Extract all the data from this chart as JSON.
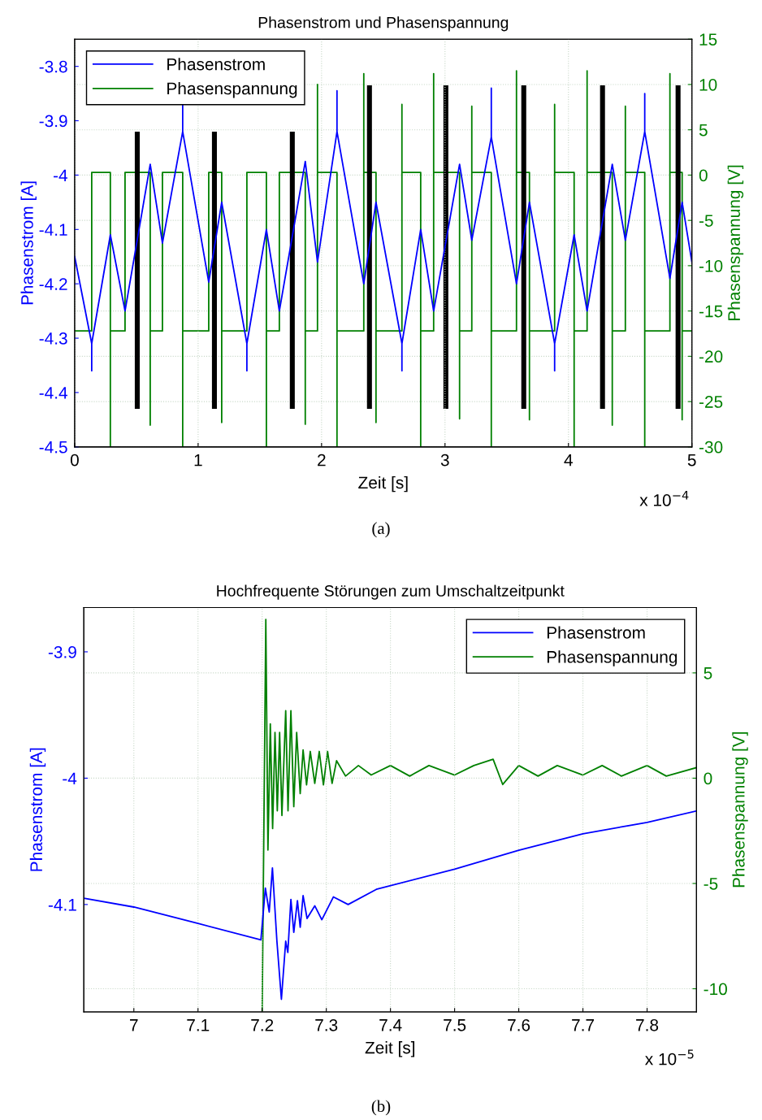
{
  "chart_data": [
    {
      "type": "line",
      "title": "Phasenstrom und Phasenspannung",
      "xlabel": "Zeit [s]",
      "ylabel": "Phasenstrom [A]",
      "y2label": "Phasenspannung [V]",
      "xlim": [
        0,
        5
      ],
      "xticks": [
        0,
        1,
        2,
        3,
        4,
        5
      ],
      "ylim": [
        -4.5,
        -3.75
      ],
      "yticks": [
        -4.5,
        -4.4,
        -4.3,
        -4.2,
        -4.1,
        -4,
        -3.9,
        -3.8
      ],
      "y2lim": [
        -30,
        15
      ],
      "y2ticks": [
        -30,
        -25,
        -20,
        -15,
        -10,
        -5,
        0,
        5,
        10,
        15
      ],
      "grid": true,
      "legend": "top left",
      "annotations": [
        "x 10$^{−4}$",
        "(a)"
      ],
      "series": [
        {
          "name": "Phasenstrom",
          "color": "#0000ff",
          "axis": "y",
          "x": [
            0,
            0.138,
            0.138,
            0.138,
            0.289,
            0.408,
            0.612,
            0.711,
            0.875,
            0.875,
            0.875,
            1.086,
            1.191,
            1.395,
            1.395,
            1.395,
            1.553,
            1.658,
            1.868,
            1.967,
            2.125,
            2.125,
            2.125,
            2.342,
            2.441,
            2.651,
            2.651,
            2.651,
            2.803,
            2.908,
            3.118,
            3.217,
            3.375,
            3.375,
            3.375,
            3.579,
            3.684,
            3.888,
            3.888,
            3.888,
            4.046,
            4.151,
            4.355,
            4.461,
            4.618,
            4.618,
            4.618,
            4.822,
            4.921,
            5
          ],
          "values": [
            -4.15,
            -4.31,
            -4.36,
            -4.31,
            -4.11,
            -4.25,
            -3.98,
            -4.125,
            -3.92,
            -3.87,
            -3.92,
            -4.197,
            -4.05,
            -4.31,
            -4.36,
            -4.31,
            -4.1,
            -4.25,
            -3.975,
            -4.16,
            -3.92,
            -3.845,
            -3.92,
            -4.2,
            -4.05,
            -4.31,
            -4.36,
            -4.31,
            -4.1,
            -4.25,
            -3.98,
            -4.12,
            -3.93,
            -3.84,
            -3.93,
            -4.2,
            -4.05,
            -4.31,
            -4.36,
            -4.31,
            -4.11,
            -4.25,
            -3.98,
            -4.12,
            -3.92,
            -3.85,
            -3.92,
            -4.19,
            -4.05,
            -4.16
          ]
        },
        {
          "name": "Phasenspannung",
          "color": "#008000",
          "axis": "y2",
          "x": [
            0,
            0.138,
            0.138,
            0.289,
            0.289,
            0.289,
            0.408,
            0.408,
            0.612,
            0.612,
            0.612,
            0.711,
            0.711,
            0.875,
            0.875,
            0.875,
            1.086,
            1.086,
            1.191,
            1.191,
            1.191,
            1.395,
            1.395,
            1.553,
            1.553,
            1.553,
            1.658,
            1.658,
            1.868,
            1.868,
            1.868,
            1.967,
            1.967,
            1.967,
            2.125,
            2.125,
            2.125,
            2.342,
            2.342,
            2.342,
            2.441,
            2.441,
            2.441,
            2.651,
            2.651,
            2.651,
            2.803,
            2.803,
            2.803,
            2.908,
            2.908,
            2.908,
            3.118,
            3.118,
            3.118,
            3.217,
            3.217,
            3.217,
            3.375,
            3.375,
            3.375,
            3.579,
            3.579,
            3.579,
            3.684,
            3.684,
            3.684,
            3.888,
            3.888,
            3.888,
            4.046,
            4.046,
            4.046,
            4.151,
            4.151,
            4.151,
            4.355,
            4.355,
            4.355,
            4.461,
            4.461,
            4.461,
            4.618,
            4.618,
            4.618,
            4.822,
            4.822,
            4.822,
            4.921,
            4.921,
            4.921,
            5
          ],
          "values": [
            -17.2,
            -17.2,
            0.3,
            0.3,
            -30,
            -17.2,
            -17.2,
            0.3,
            0.3,
            -27.6,
            -17.2,
            -17.2,
            0.3,
            0.3,
            -30,
            -17.2,
            -17.2,
            0.3,
            0.3,
            -27.3,
            -17.2,
            -17.2,
            0.3,
            0.3,
            -30,
            -17.2,
            -17.2,
            0.3,
            0.3,
            -27.5,
            -17.2,
            -17.2,
            10,
            0.3,
            0.3,
            -30,
            -17.2,
            -17.2,
            11.2,
            0.3,
            0.3,
            -27.3,
            -17.2,
            -17.2,
            7.8,
            0.3,
            0.3,
            -30,
            -17.2,
            -17.2,
            11.2,
            0.3,
            0.3,
            -26.9,
            -17.2,
            -17.2,
            7.6,
            0.3,
            0.3,
            -30,
            -17.2,
            -17.2,
            11.5,
            0.3,
            0.3,
            -27,
            -17.2,
            -17.2,
            7.8,
            0.3,
            0.3,
            -30,
            -17.2,
            -17.2,
            11.5,
            0.3,
            0.3,
            -27.6,
            -17.2,
            -17.2,
            7.6,
            0.3,
            0.3,
            -30,
            -17.2,
            -17.2,
            11.2,
            0.3,
            0.3,
            -27,
            -17.2,
            -17.2
          ]
        },
        {
          "type": "bar",
          "color": "#000000",
          "axis": "y",
          "x": [
            0.507,
            1.132,
            1.763,
            2.388,
            3.007,
            3.638,
            4.276,
            4.888
          ],
          "base": [
            -4.43,
            -4.43,
            -4.43,
            -4.43,
            -4.43,
            -4.43,
            -4.43,
            -4.43
          ],
          "values": [
            0.51,
            0.51,
            0.51,
            0.595,
            0.595,
            0.595,
            0.595,
            0.595
          ]
        }
      ]
    },
    {
      "type": "line",
      "title": "Hochfrequente Störungen zum Umschaltzeitpunkt",
      "xlabel": "Zeit [s]",
      "ylabel": "Phasenstrom [A]",
      "y2label": "Phasenspannung [V]",
      "xlim": [
        6.922,
        7.877
      ],
      "xticks": [
        7,
        7.1,
        7.2,
        7.3,
        7.4,
        7.5,
        7.6,
        7.7,
        7.8
      ],
      "ylim": [
        -4.185,
        -3.865
      ],
      "yticks": [
        -4.1,
        -4,
        -3.9
      ],
      "y2lim": [
        -11.1,
        8.1
      ],
      "y2ticks": [
        -10,
        -5,
        0,
        5
      ],
      "grid": true,
      "legend": "top right",
      "annotations": [
        "x 10$^{−5}$",
        "(b)"
      ],
      "series": [
        {
          "name": "Phasenstrom",
          "color": "#0000ff",
          "axis": "y",
          "x": [
            6.922,
            7.0,
            7.1,
            7.198,
            7.205,
            7.211,
            7.216,
            7.223,
            7.23,
            7.2367,
            7.24,
            7.2448,
            7.2493,
            7.255,
            7.2593,
            7.2638,
            7.27,
            7.282,
            7.293,
            7.311,
            7.334,
            7.378,
            7.5,
            7.6,
            7.7,
            7.8,
            7.877
          ],
          "values": [
            -4.095,
            -4.102,
            -4.115,
            -4.128,
            -4.087,
            -4.106,
            -4.071,
            -4.129,
            -4.175,
            -4.129,
            -4.138,
            -4.096,
            -4.122,
            -4.097,
            -4.118,
            -4.093,
            -4.111,
            -4.101,
            -4.112,
            -4.094,
            -4.1,
            -4.088,
            -4.072,
            -4.057,
            -4.044,
            -4.035,
            -4.026
          ]
        },
        {
          "name": "Phasenspannung",
          "color": "#008000",
          "axis": "y2",
          "x": [
            7.2,
            7.2057,
            7.209,
            7.2127,
            7.2163,
            7.22,
            7.2236,
            7.2272,
            7.2308,
            7.2367,
            7.2403,
            7.2448,
            7.2493,
            7.2538,
            7.2593,
            7.2638,
            7.2692,
            7.275,
            7.282,
            7.289,
            7.2955,
            7.302,
            7.309,
            7.316,
            7.33,
            7.35,
            7.37,
            7.4,
            7.43,
            7.46,
            7.5,
            7.53,
            7.56,
            7.575,
            7.6,
            7.63,
            7.66,
            7.7,
            7.73,
            7.76,
            7.8,
            7.83,
            7.877
          ],
          "values": [
            -11.1,
            7.54,
            -3.41,
            2.58,
            -2.39,
            2.17,
            -1.55,
            2.17,
            -1.77,
            3.2,
            -1.55,
            3.2,
            -1.35,
            2.17,
            -0.73,
            1.34,
            -0.32,
            1.27,
            -0.25,
            1.27,
            -0.32,
            1.27,
            -0.25,
            0.83,
            0.1,
            0.6,
            0.15,
            0.6,
            0.1,
            0.6,
            0.15,
            0.6,
            0.9,
            -0.3,
            0.6,
            0.1,
            0.6,
            0.15,
            0.6,
            0.1,
            0.6,
            0.1,
            0.5
          ]
        }
      ]
    }
  ]
}
